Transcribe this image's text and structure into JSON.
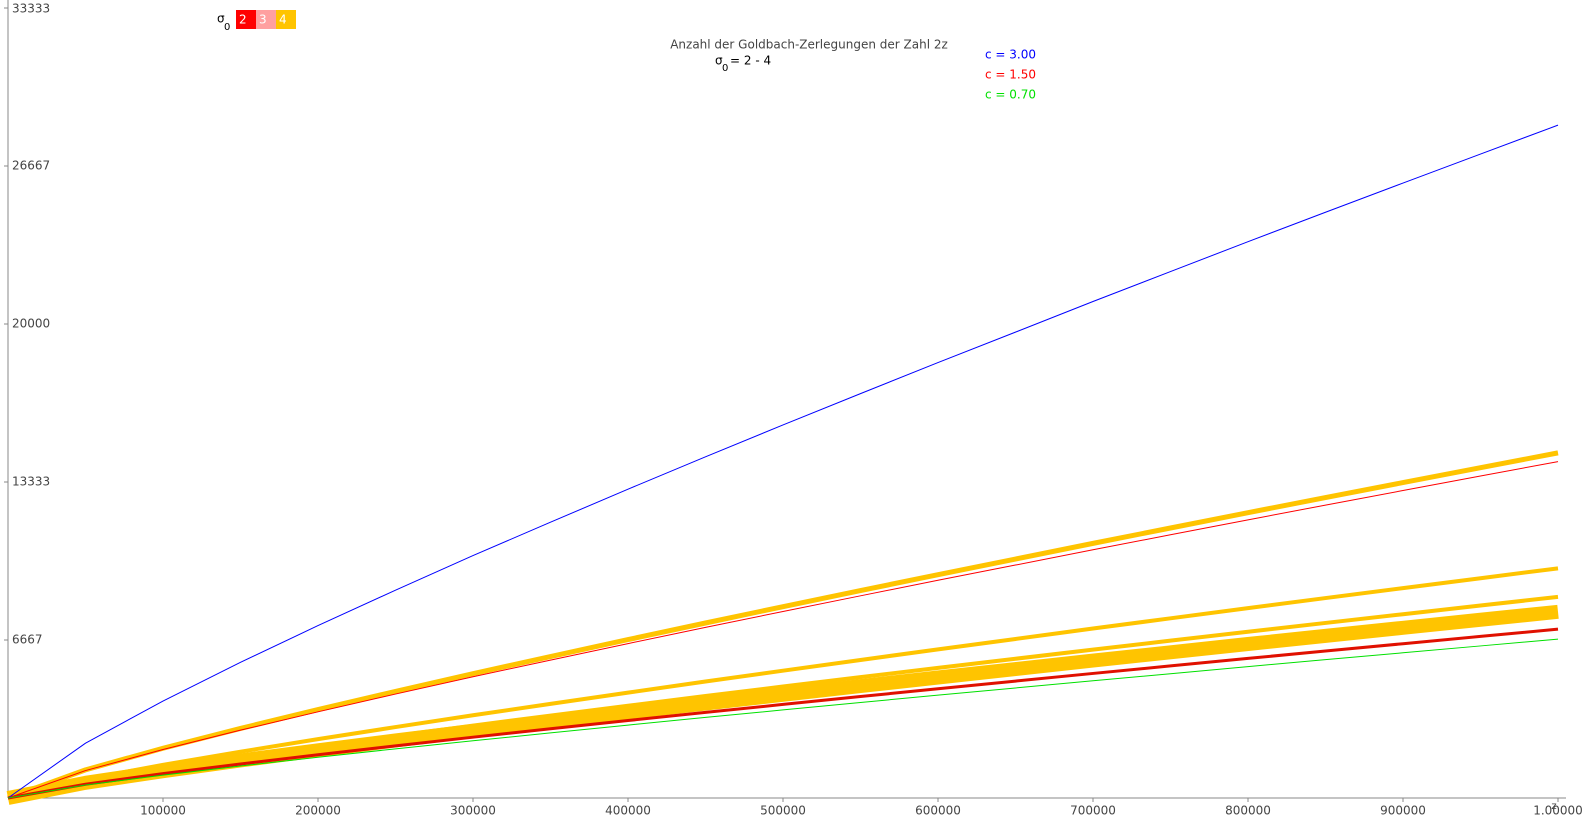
{
  "chart_data": {
    "type": "line",
    "title": "Anzahl der Goldbach-Zerlegungen der Zahl 2z",
    "subtitle": {
      "symbol": "σ",
      "subscript": "0",
      "text": "= 2 - 4"
    },
    "x_label": "z",
    "sigma_legend": {
      "symbol": "σ",
      "subscript": "0",
      "items": [
        {
          "label": "2",
          "color": "#ff0000"
        },
        {
          "label": "3",
          "color": "#ffa0a0"
        },
        {
          "label": "4",
          "color": "#ffc400"
        }
      ]
    },
    "x": [
      0,
      50000,
      100000,
      150000,
      200000,
      250000,
      300000,
      350000,
      400000,
      450000,
      500000,
      550000,
      600000,
      650000,
      700000,
      750000,
      800000,
      850000,
      900000,
      950000,
      1000000
    ],
    "xlim": [
      0,
      1000000
    ],
    "ylim": [
      0,
      33333
    ],
    "xticks": [
      100000,
      200000,
      300000,
      400000,
      500000,
      600000,
      700000,
      800000,
      900000,
      {
        "value": 1000000,
        "label": "1.00000"
      }
    ],
    "yticks": [
      6667,
      13333,
      20000,
      26667,
      33333
    ],
    "series": [
      {
        "name": "c = 3.00",
        "color": "#0000ff",
        "width": 1,
        "values": [
          0,
          2314,
          4090,
          5724,
          7274,
          8770,
          10228,
          11637,
          13030,
          14396,
          15740,
          17062,
          18374,
          19658,
          20948,
          22211,
          23474,
          24715,
          25946,
          27170,
          28390
        ]
      },
      {
        "name": "c = 1.50",
        "color": "#ff0000",
        "width": 1,
        "values": [
          0,
          1157,
          2045,
          2862,
          3637,
          4385,
          5114,
          5818,
          6515,
          7198,
          7870,
          8531,
          9187,
          9829,
          10474,
          11106,
          11737,
          12358,
          12973,
          13585,
          14195
        ]
      },
      {
        "name": "c = 0.70",
        "color": "#00e000",
        "width": 1,
        "values": [
          0,
          547,
          966,
          1352,
          1718,
          2074,
          2415,
          2748,
          3077,
          3400,
          3717,
          4029,
          4339,
          4643,
          4947,
          5245,
          5544,
          5837,
          6127,
          6416,
          6705
        ]
      },
      {
        "color": "#ffc400",
        "width": 5,
        "values": [
          0,
          1187,
          2098,
          2936,
          3731,
          4498,
          5245,
          5969,
          6683,
          7384,
          8073,
          8751,
          9424,
          10083,
          10744,
          11392,
          12040,
          12677,
          13308,
          13936,
          14562
        ]
      },
      {
        "color": "#ffc400",
        "width": 4,
        "values": [
          0,
          790,
          1397,
          1954,
          2483,
          2993,
          3491,
          3972,
          4447,
          4914,
          5372,
          5824,
          6272,
          6710,
          7150,
          7581,
          8012,
          8436,
          8856,
          9274,
          9690
        ]
      },
      {
        "color": "#ffc400",
        "width": 4,
        "values": [
          0,
          692,
          1223,
          1711,
          2174,
          2621,
          3057,
          3478,
          3894,
          4303,
          4704,
          5100,
          5492,
          5876,
          6261,
          6639,
          7016,
          7387,
          7755,
          8121,
          8486
        ]
      },
      {
        "color": "#ffc400",
        "width": 14,
        "values": [
          0,
          641,
          1133,
          1584,
          2013,
          2427,
          2831,
          3221,
          3606,
          3984,
          4356,
          4722,
          5085,
          5441,
          5798,
          6147,
          6497,
          6840,
          7181,
          7520,
          7857
        ]
      },
      {
        "color": "#e01000",
        "width": 3,
        "values": [
          0,
          581,
          1027,
          1436,
          1825,
          2200,
          2566,
          2920,
          3269,
          3612,
          3949,
          4281,
          4610,
          4933,
          5256,
          5573,
          5890,
          6202,
          6510,
          6818,
          7124
        ]
      }
    ]
  }
}
